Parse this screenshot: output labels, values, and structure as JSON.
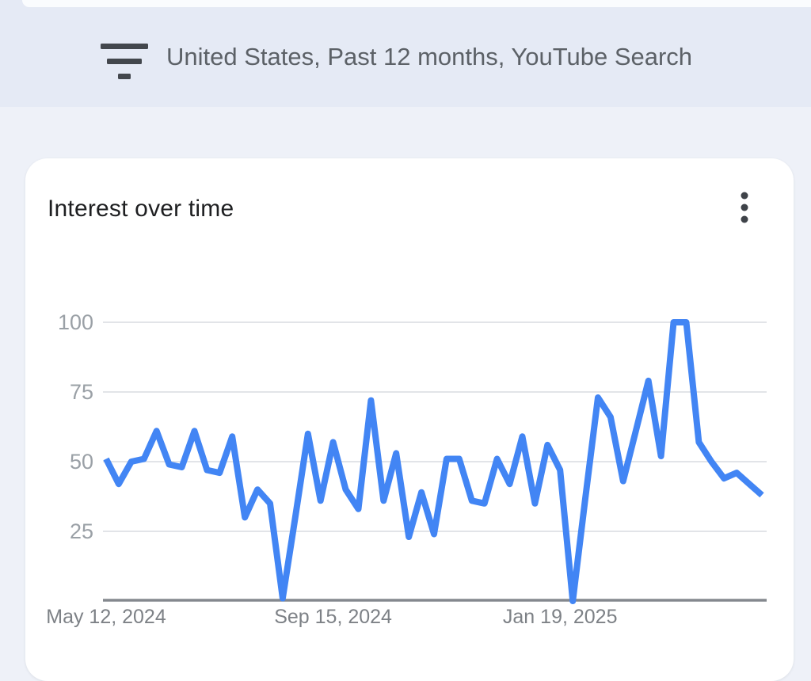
{
  "header": {
    "summary": "United States, Past 12 months, YouTube Search"
  },
  "card": {
    "title": "Interest over time",
    "menu_icon": "more-vertical-dots-icon"
  },
  "chart_data": {
    "type": "line",
    "title": "Interest over time",
    "x_tick_labels": [
      "May 12, 2024",
      "Sep 15, 2024",
      "Jan 19, 2025"
    ],
    "x_tick_indices": [
      0,
      18,
      36
    ],
    "y_tick_labels": [
      "100",
      "75",
      "50",
      "25"
    ],
    "y_ticks": [
      100,
      75,
      50,
      25
    ],
    "ylim": [
      0,
      100
    ],
    "interval": "weekly",
    "legend": "none",
    "grid": "horizontal",
    "line_color": "#4285F4",
    "values": [
      51,
      42,
      50,
      51,
      61,
      49,
      48,
      61,
      47,
      46,
      59,
      30,
      40,
      35,
      1,
      30,
      60,
      36,
      57,
      40,
      33,
      72,
      36,
      53,
      23,
      39,
      24,
      51,
      51,
      36,
      35,
      51,
      42,
      59,
      35,
      56,
      47,
      0,
      37,
      73,
      66,
      43,
      61,
      79,
      52,
      100,
      100,
      57,
      50,
      44,
      46,
      42,
      38
    ]
  },
  "colors": {
    "page_background": "#eef1f8",
    "header_band": "#e5eaf5",
    "card_background": "#ffffff",
    "line": "#4285F4",
    "gridline": "#e2e4e8",
    "axis_baseline": "#84888e",
    "y_label_text": "#9aa0a6",
    "x_label_text": "#7d8186",
    "title_text": "#1e1f21",
    "header_text": "#5c6167",
    "icon": "#43474d"
  }
}
